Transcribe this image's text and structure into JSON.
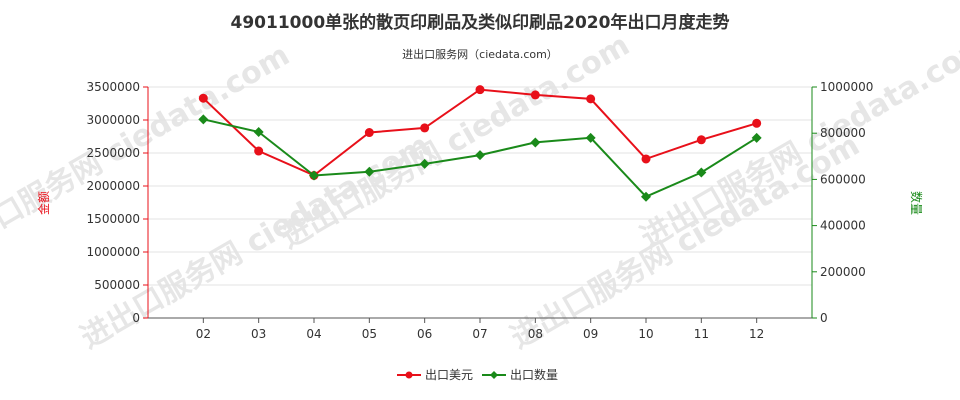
{
  "chart_data": {
    "type": "line",
    "title": "49011000单张的散页印刷品及类似印刷品2020年出口月度走势",
    "subtitle": "进出口服务网（ciedata.com）",
    "watermark": "进出口服务网 ciedata.com",
    "categories": [
      "02",
      "03",
      "04",
      "05",
      "06",
      "07",
      "08",
      "09",
      "10",
      "11",
      "12"
    ],
    "y_left": {
      "label": "金额",
      "ylim": [
        0,
        3500000
      ],
      "ticks": [
        "0",
        "500000",
        "1000000",
        "1500000",
        "2000000",
        "2500000",
        "3000000",
        "3500000"
      ],
      "color": "#e8101a"
    },
    "y_right": {
      "label": "数量",
      "ylim": [
        0,
        1000000
      ],
      "ticks": [
        "0",
        "200000",
        "400000",
        "600000",
        "800000",
        "1000000"
      ],
      "color": "#1a8a1a"
    },
    "series": [
      {
        "name": "出口美元",
        "axis": "left",
        "color": "#e8101a",
        "marker": "circle",
        "values": [
          3330000,
          2530000,
          2160000,
          2810000,
          2880000,
          3460000,
          3380000,
          3320000,
          2410000,
          2700000,
          2950000
        ]
      },
      {
        "name": "出口数量",
        "axis": "right",
        "color": "#1a8a1a",
        "marker": "diamond",
        "values": [
          860000,
          805000,
          617000,
          633000,
          667000,
          705000,
          760000,
          780000,
          525000,
          630000,
          780000
        ]
      }
    ],
    "grid": true,
    "legend_position": "bottom-center"
  }
}
